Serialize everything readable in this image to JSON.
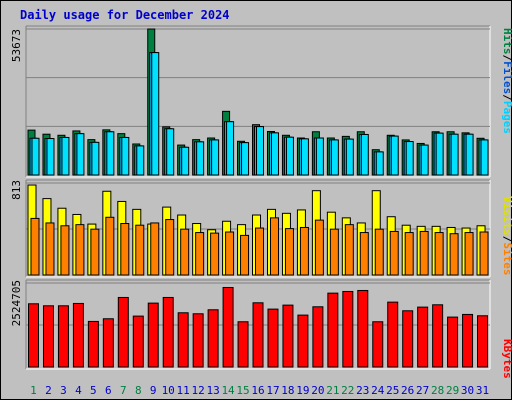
{
  "title": "Daily usage for December 2024",
  "colors": {
    "frame_bg": "#c0c0c0",
    "plot_bg": "#c0c0c0",
    "title": "#0000cc",
    "hits": "#008040",
    "files": "#00c0ff",
    "pages": "#00e0ff",
    "visits": "#ffff00",
    "sites": "#ff8000",
    "kbytes": "#ff0000",
    "weekend_label": "#008040",
    "weekday_label": "#0000cc"
  },
  "legend": {
    "hits": "Hits",
    "files": "Files",
    "pages": "Pages",
    "sep": "/",
    "visits": "Visits",
    "sites": "Sites",
    "kbytes": "KBytes"
  },
  "chart_data": [
    {
      "type": "bar",
      "title": "Daily usage for December 2024",
      "ymax_label": "53673",
      "ylim": [
        0,
        53673
      ],
      "categories": [
        "1",
        "2",
        "3",
        "4",
        "5",
        "6",
        "7",
        "8",
        "9",
        "10",
        "11",
        "12",
        "13",
        "14",
        "15",
        "16",
        "17",
        "18",
        "19",
        "20",
        "21",
        "22",
        "23",
        "24",
        "25",
        "26",
        "27",
        "28",
        "29",
        "30",
        "31"
      ],
      "weekend_days": [
        1,
        7,
        8,
        14,
        15,
        21,
        22,
        28,
        29
      ],
      "series": [
        {
          "name": "Hits",
          "values": [
            16500,
            15000,
            14600,
            16200,
            13000,
            16600,
            15200,
            11400,
            53673,
            17700,
            11000,
            13000,
            13600,
            23400,
            12400,
            18500,
            16000,
            14600,
            13600,
            15900,
            13600,
            14200,
            15900,
            9300,
            14600,
            12900,
            11600,
            15900,
            15900,
            15500,
            13500
          ]
        },
        {
          "name": "Files",
          "values": [
            13500,
            13400,
            13800,
            15200,
            12000,
            15900,
            13800,
            10700,
            45000,
            17000,
            10200,
            12200,
            12900,
            19600,
            11900,
            17800,
            15500,
            13900,
            13300,
            13600,
            12900,
            13200,
            14900,
            8500,
            14300,
            12300,
            11000,
            15400,
            15000,
            15000,
            12900
          ]
        },
        {
          "name": "Pages",
          "values": [
            13500,
            13400,
            13800,
            15200,
            12000,
            15900,
            13800,
            10700,
            45000,
            17000,
            10200,
            12200,
            12900,
            19600,
            11900,
            17800,
            15500,
            13900,
            13300,
            13600,
            12900,
            13200,
            14900,
            8500,
            14300,
            12300,
            11000,
            15400,
            15000,
            15000,
            12900
          ]
        }
      ]
    },
    {
      "type": "bar",
      "ymax_label": "813",
      "ylim": [
        0,
        813
      ],
      "categories": [
        "1",
        "2",
        "3",
        "4",
        "5",
        "6",
        "7",
        "8",
        "9",
        "10",
        "11",
        "12",
        "13",
        "14",
        "15",
        "16",
        "17",
        "18",
        "19",
        "20",
        "21",
        "22",
        "23",
        "24",
        "25",
        "26",
        "27",
        "28",
        "29",
        "30",
        "31"
      ],
      "series": [
        {
          "name": "Visits",
          "values": [
            795,
            675,
            590,
            535,
            450,
            740,
            650,
            580,
            450,
            600,
            530,
            455,
            400,
            475,
            445,
            530,
            580,
            545,
            575,
            745,
            555,
            505,
            460,
            745,
            515,
            440,
            430,
            430,
            420,
            415,
            435
          ]
        },
        {
          "name": "Sites",
          "values": [
            500,
            460,
            435,
            445,
            405,
            510,
            455,
            440,
            460,
            490,
            405,
            375,
            370,
            380,
            350,
            415,
            505,
            410,
            420,
            485,
            405,
            445,
            375,
            405,
            385,
            375,
            385,
            375,
            365,
            375,
            380
          ]
        }
      ]
    },
    {
      "type": "bar",
      "ymax_label": "2524705",
      "ylim": [
        0,
        2524705
      ],
      "categories": [
        "1",
        "2",
        "3",
        "4",
        "5",
        "6",
        "7",
        "8",
        "9",
        "10",
        "11",
        "12",
        "13",
        "14",
        "15",
        "16",
        "17",
        "18",
        "19",
        "20",
        "21",
        "22",
        "23",
        "24",
        "25",
        "26",
        "27",
        "28",
        "29",
        "30",
        "31"
      ],
      "series": [
        {
          "name": "KBytes",
          "values": [
            1900000,
            1840000,
            1840000,
            1910000,
            1370000,
            1450000,
            2090000,
            1530000,
            1920000,
            2090000,
            1630000,
            1600000,
            1720000,
            2390000,
            1360000,
            1930000,
            1740000,
            1860000,
            1560000,
            1810000,
            2220000,
            2270000,
            2300000,
            1360000,
            1950000,
            1690000,
            1800000,
            1870000,
            1500000,
            1580000,
            1540000
          ]
        }
      ]
    }
  ]
}
